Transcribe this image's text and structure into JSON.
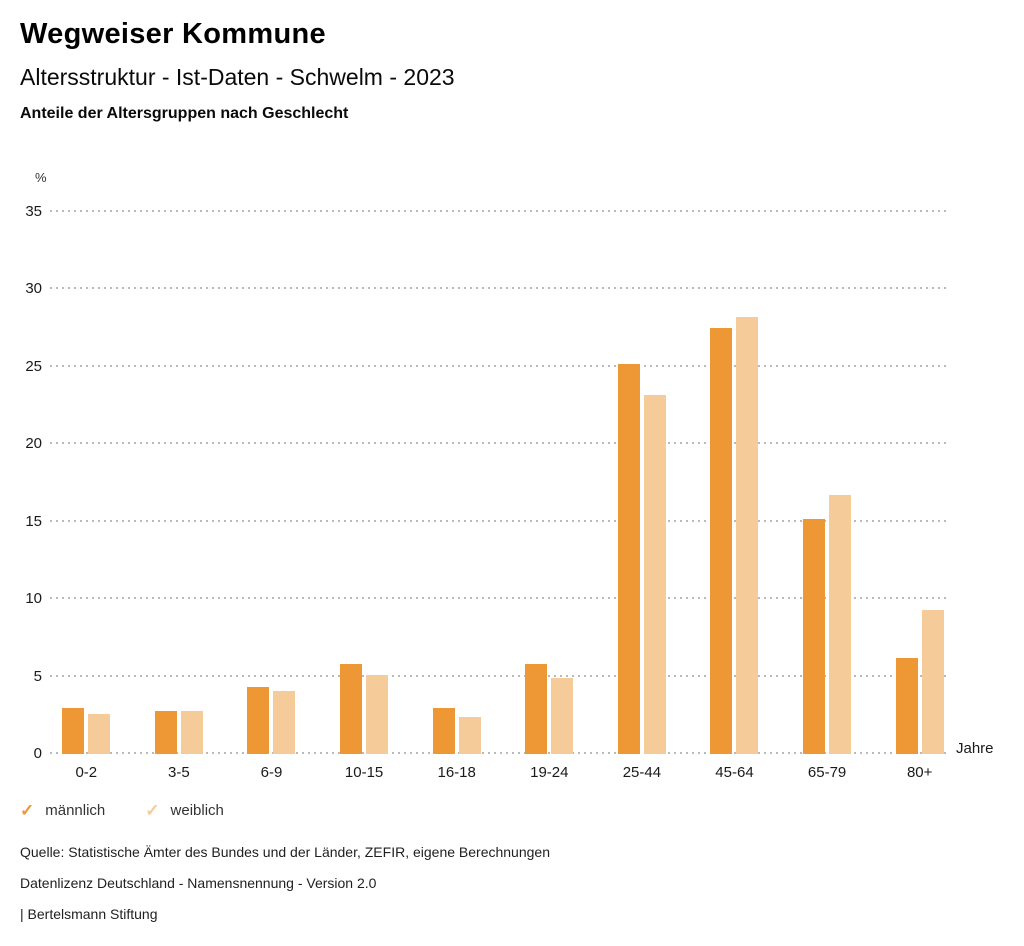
{
  "header": {
    "app_title": "Wegweiser Kommune",
    "chart_title": "Altersstruktur - Ist-Daten - Schwelm - 2023",
    "chart_subtitle": "Anteile der Altersgruppen nach Geschlecht"
  },
  "chart_data": {
    "type": "bar",
    "title": "Altersstruktur - Ist-Daten - Schwelm - 2023",
    "subtitle": "Anteile der Altersgruppen nach Geschlecht",
    "ylabel": "%",
    "xlabel": "Jahre",
    "categories": [
      "0-2",
      "3-5",
      "6-9",
      "10-15",
      "16-18",
      "19-24",
      "25-44",
      "45-64",
      "65-79",
      "80+"
    ],
    "series": [
      {
        "name": "männlich",
        "color": "#ED9735",
        "values": [
          3.0,
          2.8,
          4.3,
          5.8,
          3.0,
          5.8,
          25.2,
          27.5,
          15.2,
          6.2
        ]
      },
      {
        "name": "weiblich",
        "color": "#F5CB99",
        "values": [
          2.6,
          2.8,
          4.1,
          5.1,
          2.4,
          4.9,
          23.2,
          28.2,
          16.7,
          9.3
        ]
      }
    ],
    "ylim": [
      0,
      35
    ],
    "yticks": [
      0,
      5,
      10,
      15,
      20,
      25,
      30,
      35
    ],
    "grid": "horizontal-dotted",
    "legend_position": "bottom-left"
  },
  "legend": {
    "check_glyph": "✓"
  },
  "footer": {
    "source": "Quelle: Statistische Ämter des Bundes und der Länder, ZEFIR, eigene Berechnungen",
    "license": "Datenlizenz Deutschland - Namensnennung - Version 2.0",
    "attribution": "| Bertelsmann Stiftung"
  }
}
